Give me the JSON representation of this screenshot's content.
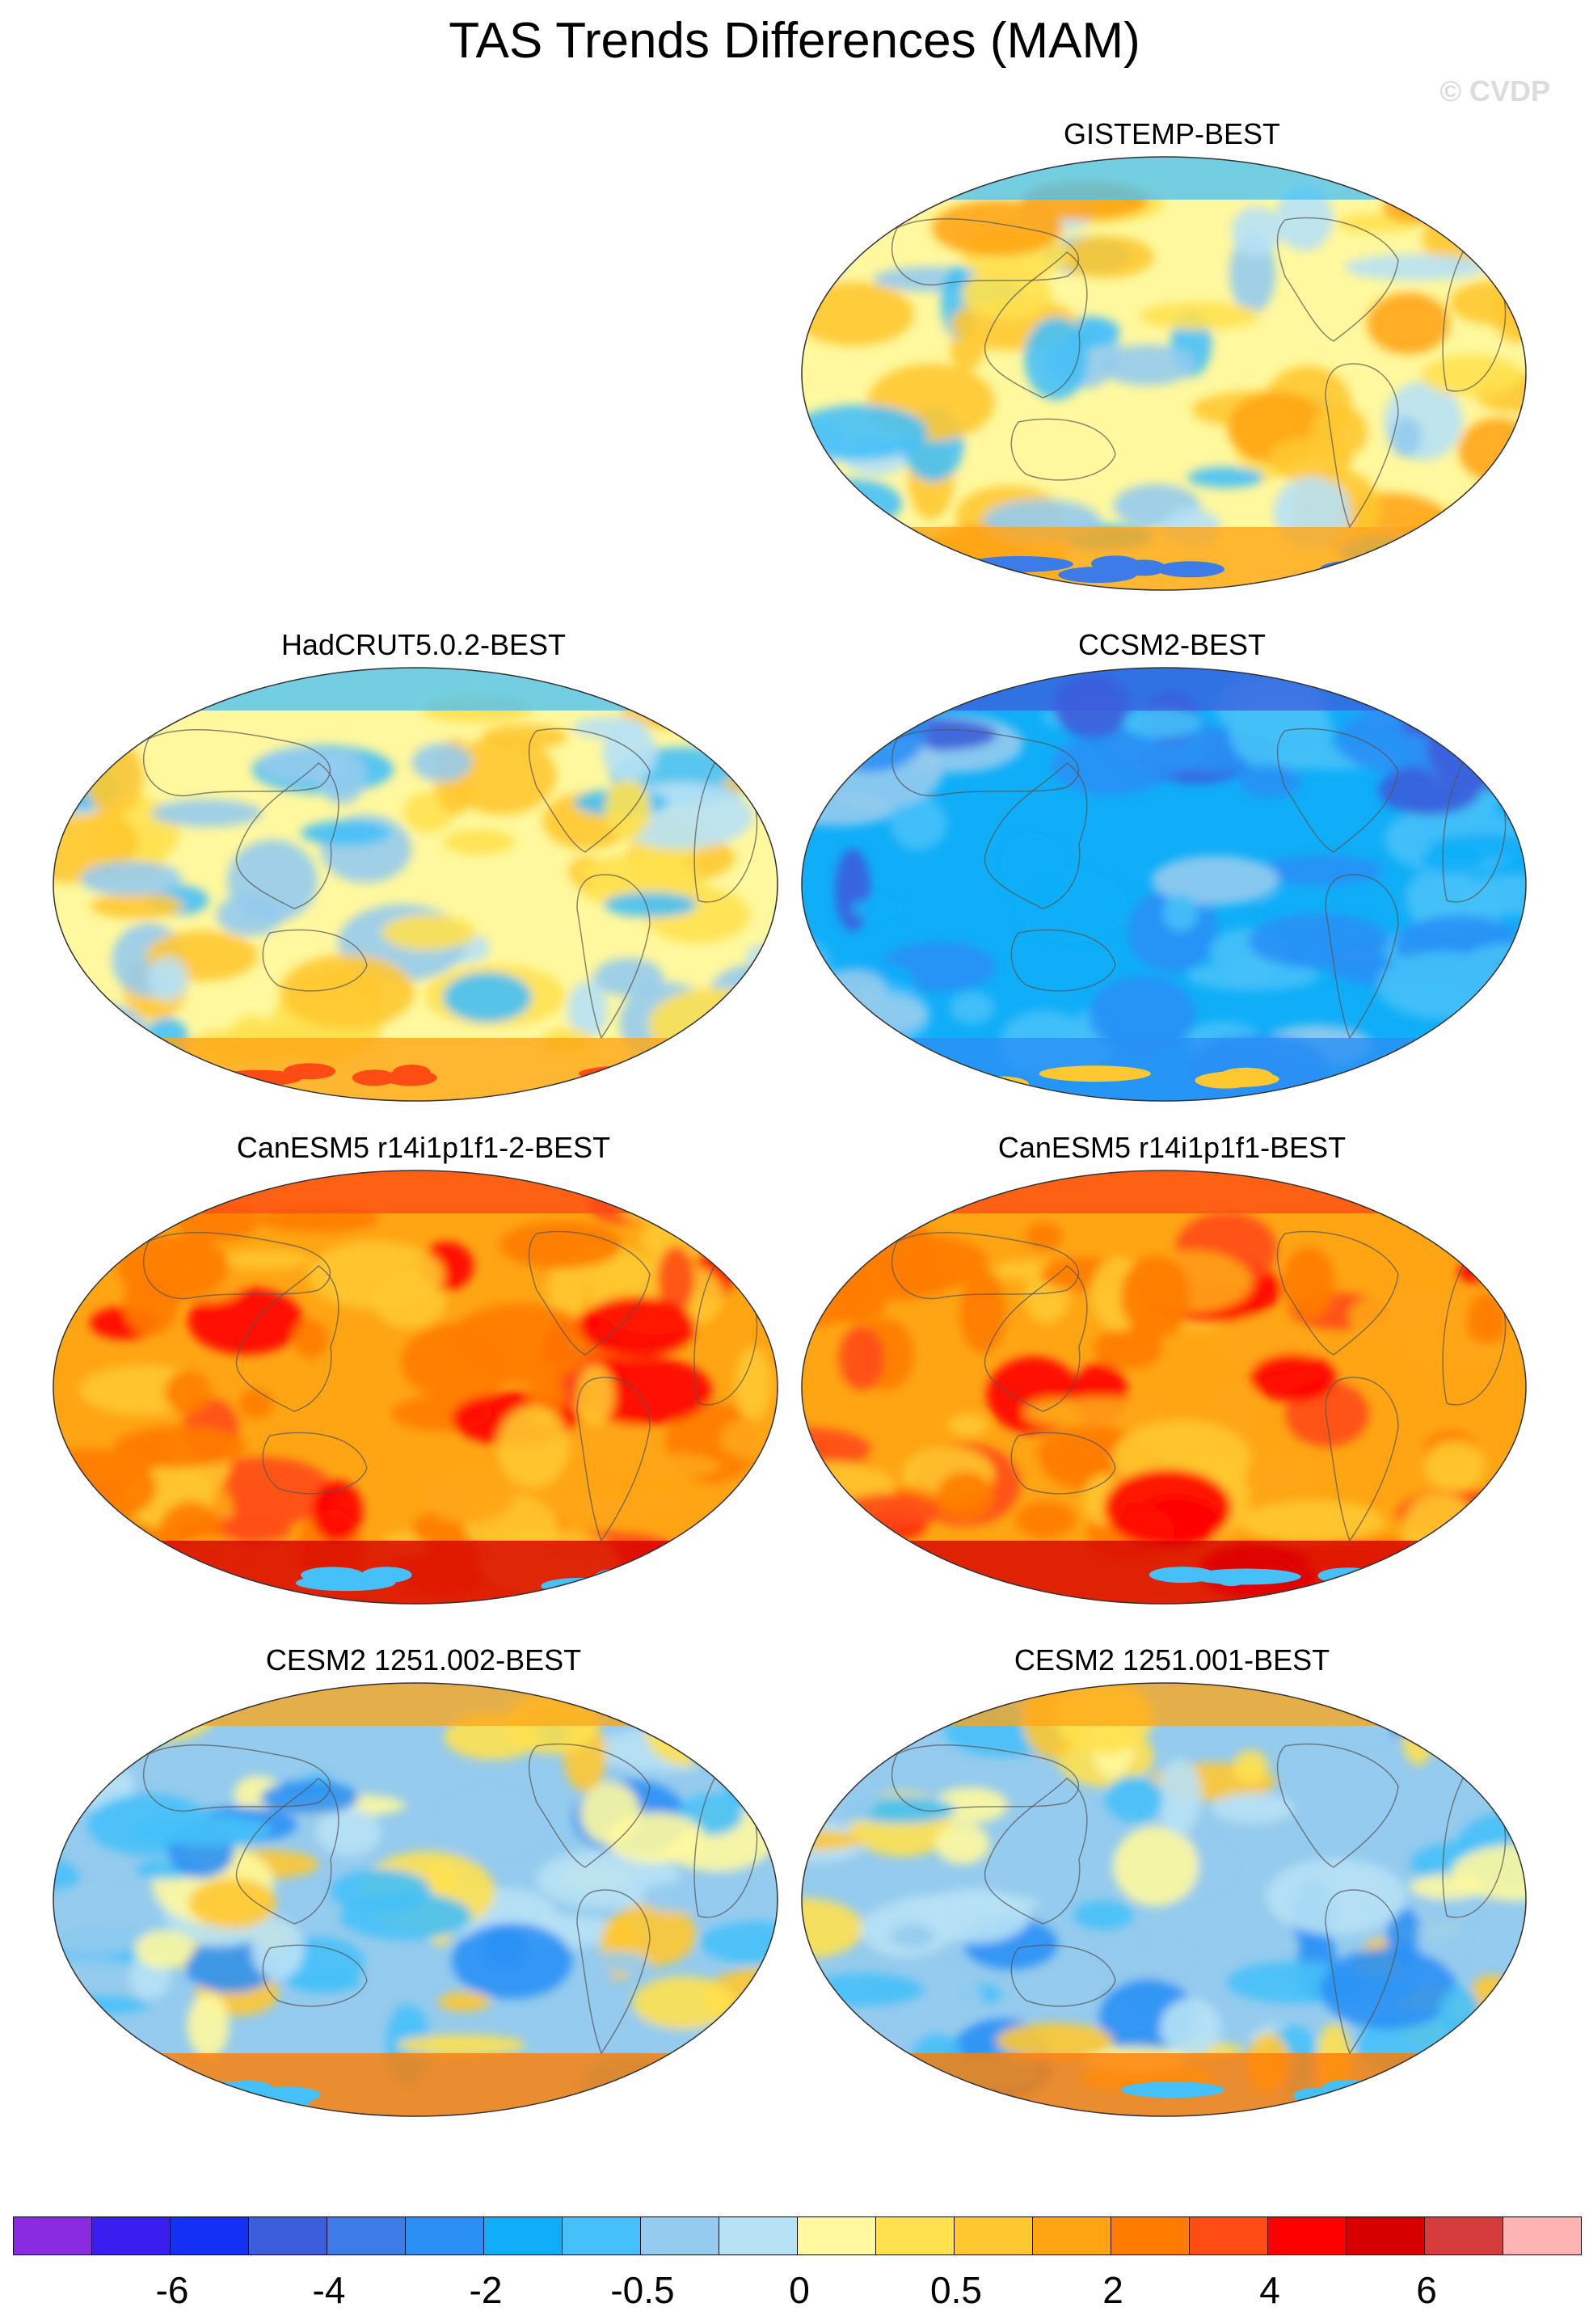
{
  "title": "TAS Trends Differences (MAM)",
  "copyright": "© CVDP",
  "panels": [
    {
      "id": "gistemp",
      "label": "GISTEMP-BEST",
      "pattern": "mixed-obs"
    },
    {
      "id": "hadcrut",
      "label": "HadCRUT5.0.2-BEST",
      "pattern": "mixed-obs-warm"
    },
    {
      "id": "ccsm2",
      "label": "CCSM2-BEST",
      "pattern": "cool"
    },
    {
      "id": "canesm5_2",
      "label": "CanESM5 r14i1p1f1-2-BEST",
      "pattern": "warm"
    },
    {
      "id": "canesm5_1",
      "label": "CanESM5 r14i1p1f1-BEST",
      "pattern": "warm"
    },
    {
      "id": "cesm2_002",
      "label": "CESM2 1251.002-BEST",
      "pattern": "mixed-cool"
    },
    {
      "id": "cesm2_001",
      "label": "CESM2 1251.001-BEST",
      "pattern": "mixed-cool"
    }
  ],
  "colorbar": {
    "colors": [
      "#8a2be2",
      "#3a1ef0",
      "#1530f5",
      "#3c5ddc",
      "#3d7be8",
      "#2a90f5",
      "#10aef8",
      "#45c0f8",
      "#95cbee",
      "#b7e1f5",
      "#fff89e",
      "#ffe14f",
      "#ffc830",
      "#ffa514",
      "#ff7c00",
      "#ff4b14",
      "#ff0000",
      "#d70000",
      "#d73c3c",
      "#ffb4b4"
    ],
    "labels": [
      "-6",
      "-4",
      "-2",
      "-0.5",
      "0",
      "0.5",
      "2",
      "4",
      "6"
    ]
  }
}
